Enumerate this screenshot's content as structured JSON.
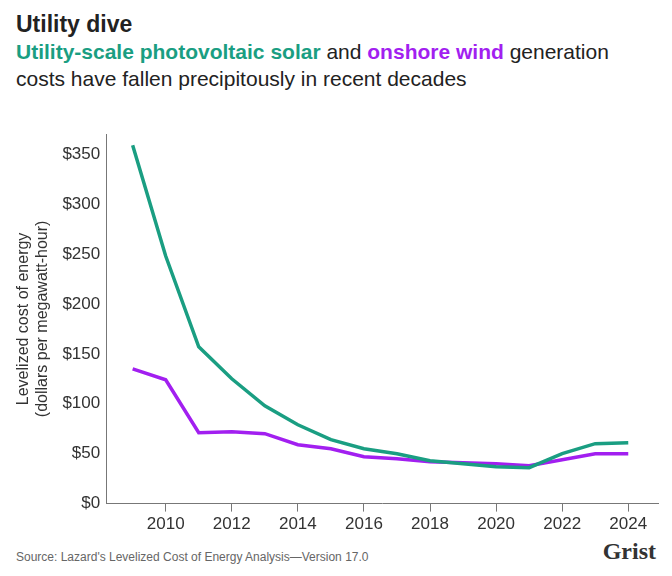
{
  "chart_data": {
    "type": "line",
    "title": "Utility dive",
    "subtitle": "Utility-scale photovoltaic solar and onshore wind generation costs have fallen precipitously in recent decades",
    "ylabel": [
      "Levelized cost of energy",
      "(dollars per megawatt-hour)"
    ],
    "source": "Source: Lazard's Levelized Cost of Energy Analysis—Version 17.0",
    "credit": "Grist",
    "x": [
      2009,
      2010,
      2011,
      2012,
      2013,
      2014,
      2015,
      2016,
      2017,
      2018,
      2019,
      2020,
      2021,
      2022,
      2023,
      2024
    ],
    "series": [
      {
        "name": "Utility-scale photovoltaic solar",
        "color": "#1a9e82",
        "values": [
          359,
          248,
          157,
          125,
          98,
          79,
          64,
          55,
          50,
          43,
          40,
          37,
          36,
          50,
          60,
          61
        ]
      },
      {
        "name": "onshore wind",
        "color": "#a21ff0",
        "values": [
          135,
          124,
          71,
          72,
          70,
          59,
          55,
          47,
          45,
          42,
          41,
          40,
          38,
          44,
          50,
          50
        ]
      }
    ],
    "xlim": [
      2008.2,
      2024.9
    ],
    "xticks": [
      2010,
      2012,
      2014,
      2016,
      2018,
      2020,
      2022,
      2024
    ],
    "ylim": [
      0,
      370
    ],
    "yticks": [
      {
        "value": 0,
        "label": "$0"
      },
      {
        "value": 50,
        "label": "$50"
      },
      {
        "value": 100,
        "label": "$100"
      },
      {
        "value": 150,
        "label": "$150"
      },
      {
        "value": 200,
        "label": "$200"
      },
      {
        "value": 250,
        "label": "$250"
      },
      {
        "value": 300,
        "label": "$300"
      },
      {
        "value": 350,
        "label": "$350"
      }
    ],
    "grid": false
  }
}
